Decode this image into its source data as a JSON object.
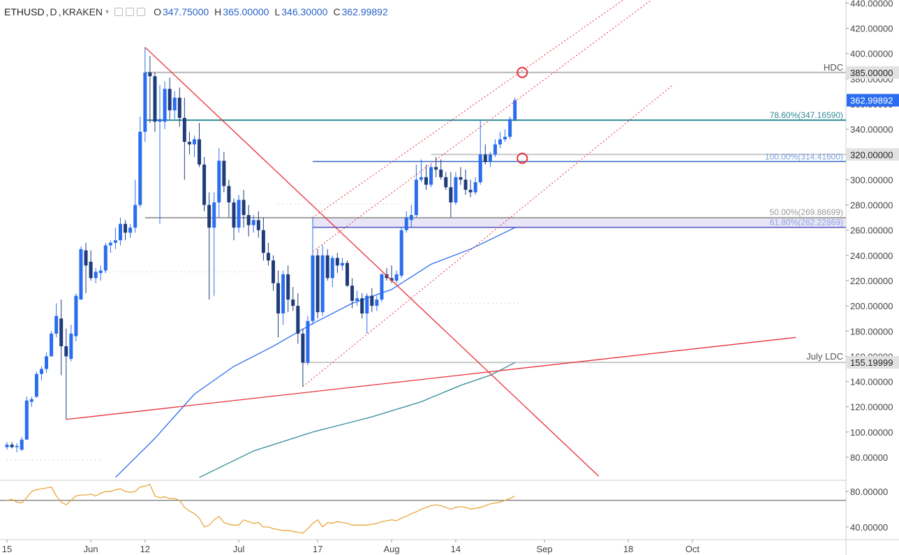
{
  "header": {
    "symbol": "ETHUSD",
    "interval": "D",
    "exchange": "KRAKEN",
    "ohlc": [
      {
        "key": "O",
        "value": "347.75000"
      },
      {
        "key": "H",
        "value": "365.00000"
      },
      {
        "key": "L",
        "value": "346.30000"
      },
      {
        "key": "C",
        "value": "362.99892"
      }
    ]
  },
  "colors": {
    "up": "#2a6df0",
    "down": "#1f3c7a",
    "trend_red": "#e8303a",
    "fib_teal": "#2e8b96",
    "fib_blue": "#3367c8",
    "ma_blue": "#2a6df0",
    "ma_teal": "#2e8b96",
    "rsi": "#e8a030",
    "grey": "#9e9e9e",
    "last_price_bg": "#2a6df0"
  },
  "chart_data": {
    "type": "candlestick",
    "y_axis": {
      "range": [
        64,
        444
      ],
      "ticks": [
        "80.00000",
        "100.00000",
        "120.00000",
        "140.00000",
        "160.00000",
        "180.00000",
        "200.00000",
        "220.00000",
        "240.00000",
        "260.00000",
        "280.00000",
        "300.00000",
        "320.00000",
        "340.00000",
        "360.00000",
        "380.00000",
        "400.00000",
        "420.00000",
        "440.00000"
      ]
    },
    "x_axis": {
      "tick_labels": [
        {
          "day": 0,
          "label": "15"
        },
        {
          "day": 17,
          "label": "Jun"
        },
        {
          "day": 28,
          "label": "12"
        },
        {
          "day": 47,
          "label": "Jul"
        },
        {
          "day": 63,
          "label": "17"
        },
        {
          "day": 78,
          "label": "Aug"
        },
        {
          "day": 91,
          "label": "14"
        },
        {
          "day": 109,
          "label": "Sep"
        },
        {
          "day": 126,
          "label": "18"
        },
        {
          "day": 139,
          "label": "Oct"
        }
      ]
    },
    "candles": [
      {
        "d": 0,
        "o": 88,
        "h": 92,
        "l": 86,
        "c": 90
      },
      {
        "d": 1,
        "o": 90,
        "h": 92,
        "l": 87,
        "c": 88
      },
      {
        "d": 2,
        "o": 88,
        "h": 91,
        "l": 84,
        "c": 89
      },
      {
        "d": 3,
        "o": 86,
        "h": 96,
        "l": 85,
        "c": 94
      },
      {
        "d": 4,
        "o": 94,
        "h": 128,
        "l": 94,
        "c": 125
      },
      {
        "d": 5,
        "o": 124,
        "h": 128,
        "l": 120,
        "c": 126
      },
      {
        "d": 6,
        "o": 128,
        "h": 148,
        "l": 127,
        "c": 146
      },
      {
        "d": 7,
        "o": 146,
        "h": 152,
        "l": 141,
        "c": 150
      },
      {
        "d": 8,
        "o": 150,
        "h": 163,
        "l": 147,
        "c": 160
      },
      {
        "d": 9,
        "o": 160,
        "h": 180,
        "l": 160,
        "c": 178
      },
      {
        "d": 10,
        "o": 178,
        "h": 202,
        "l": 175,
        "c": 192
      },
      {
        "d": 11,
        "o": 190,
        "h": 205,
        "l": 145,
        "c": 168
      },
      {
        "d": 12,
        "o": 168,
        "h": 182,
        "l": 110,
        "c": 160
      },
      {
        "d": 13,
        "o": 158,
        "h": 185,
        "l": 156,
        "c": 178
      },
      {
        "d": 14,
        "o": 176,
        "h": 210,
        "l": 172,
        "c": 208
      },
      {
        "d": 15,
        "o": 205,
        "h": 247,
        "l": 205,
        "c": 245
      },
      {
        "d": 16,
        "o": 244,
        "h": 250,
        "l": 210,
        "c": 232
      },
      {
        "d": 17,
        "o": 235,
        "h": 244,
        "l": 220,
        "c": 222
      },
      {
        "d": 18,
        "o": 222,
        "h": 230,
        "l": 218,
        "c": 227
      },
      {
        "d": 19,
        "o": 226,
        "h": 232,
        "l": 220,
        "c": 228
      },
      {
        "d": 20,
        "o": 228,
        "h": 250,
        "l": 226,
        "c": 248
      },
      {
        "d": 21,
        "o": 248,
        "h": 252,
        "l": 242,
        "c": 250
      },
      {
        "d": 22,
        "o": 250,
        "h": 262,
        "l": 245,
        "c": 252
      },
      {
        "d": 23,
        "o": 252,
        "h": 270,
        "l": 248,
        "c": 265
      },
      {
        "d": 24,
        "o": 265,
        "h": 268,
        "l": 252,
        "c": 258
      },
      {
        "d": 25,
        "o": 258,
        "h": 265,
        "l": 254,
        "c": 262
      },
      {
        "d": 26,
        "o": 262,
        "h": 300,
        "l": 258,
        "c": 280
      },
      {
        "d": 27,
        "o": 280,
        "h": 350,
        "l": 278,
        "c": 338
      },
      {
        "d": 28,
        "o": 338,
        "h": 405,
        "l": 330,
        "c": 385
      },
      {
        "d": 29,
        "o": 385,
        "h": 398,
        "l": 345,
        "c": 382
      },
      {
        "d": 30,
        "o": 382,
        "h": 385,
        "l": 338,
        "c": 346
      },
      {
        "d": 31,
        "o": 346,
        "h": 375,
        "l": 265,
        "c": 348
      },
      {
        "d": 32,
        "o": 346,
        "h": 378,
        "l": 340,
        "c": 372
      },
      {
        "d": 33,
        "o": 372,
        "h": 381,
        "l": 348,
        "c": 355
      },
      {
        "d": 34,
        "o": 355,
        "h": 370,
        "l": 348,
        "c": 365
      },
      {
        "d": 35,
        "o": 365,
        "h": 373,
        "l": 342,
        "c": 349
      },
      {
        "d": 36,
        "o": 349,
        "h": 365,
        "l": 300,
        "c": 330
      },
      {
        "d": 37,
        "o": 330,
        "h": 338,
        "l": 320,
        "c": 328
      },
      {
        "d": 38,
        "o": 328,
        "h": 335,
        "l": 318,
        "c": 332
      },
      {
        "d": 39,
        "o": 332,
        "h": 345,
        "l": 310,
        "c": 312
      },
      {
        "d": 40,
        "o": 312,
        "h": 318,
        "l": 275,
        "c": 280
      },
      {
        "d": 41,
        "o": 280,
        "h": 290,
        "l": 205,
        "c": 262
      },
      {
        "d": 42,
        "o": 262,
        "h": 290,
        "l": 208,
        "c": 282
      },
      {
        "d": 43,
        "o": 282,
        "h": 325,
        "l": 270,
        "c": 315
      },
      {
        "d": 44,
        "o": 315,
        "h": 322,
        "l": 290,
        "c": 295
      },
      {
        "d": 45,
        "o": 295,
        "h": 300,
        "l": 270,
        "c": 282
      },
      {
        "d": 46,
        "o": 282,
        "h": 285,
        "l": 252,
        "c": 262
      },
      {
        "d": 47,
        "o": 262,
        "h": 288,
        "l": 258,
        "c": 284
      },
      {
        "d": 48,
        "o": 284,
        "h": 292,
        "l": 262,
        "c": 272
      },
      {
        "d": 49,
        "o": 272,
        "h": 280,
        "l": 255,
        "c": 264
      },
      {
        "d": 50,
        "o": 264,
        "h": 272,
        "l": 258,
        "c": 268
      },
      {
        "d": 51,
        "o": 268,
        "h": 275,
        "l": 254,
        "c": 260
      },
      {
        "d": 52,
        "o": 260,
        "h": 270,
        "l": 236,
        "c": 242
      },
      {
        "d": 53,
        "o": 242,
        "h": 250,
        "l": 232,
        "c": 236
      },
      {
        "d": 54,
        "o": 236,
        "h": 240,
        "l": 212,
        "c": 218
      },
      {
        "d": 55,
        "o": 218,
        "h": 228,
        "l": 175,
        "c": 194
      },
      {
        "d": 56,
        "o": 194,
        "h": 228,
        "l": 185,
        "c": 225
      },
      {
        "d": 57,
        "o": 225,
        "h": 232,
        "l": 195,
        "c": 205
      },
      {
        "d": 58,
        "o": 205,
        "h": 215,
        "l": 196,
        "c": 200
      },
      {
        "d": 59,
        "o": 200,
        "h": 210,
        "l": 170,
        "c": 178
      },
      {
        "d": 60,
        "o": 178,
        "h": 182,
        "l": 136,
        "c": 155
      },
      {
        "d": 61,
        "o": 155,
        "h": 192,
        "l": 153,
        "c": 188
      },
      {
        "d": 62,
        "o": 188,
        "h": 270,
        "l": 185,
        "c": 240
      },
      {
        "d": 63,
        "o": 240,
        "h": 245,
        "l": 190,
        "c": 195
      },
      {
        "d": 64,
        "o": 195,
        "h": 248,
        "l": 192,
        "c": 240
      },
      {
        "d": 65,
        "o": 240,
        "h": 245,
        "l": 220,
        "c": 222
      },
      {
        "d": 66,
        "o": 222,
        "h": 240,
        "l": 215,
        "c": 238
      },
      {
        "d": 67,
        "o": 238,
        "h": 242,
        "l": 226,
        "c": 232
      },
      {
        "d": 68,
        "o": 232,
        "h": 238,
        "l": 228,
        "c": 234
      },
      {
        "d": 69,
        "o": 234,
        "h": 236,
        "l": 215,
        "c": 216
      },
      {
        "d": 70,
        "o": 216,
        "h": 222,
        "l": 198,
        "c": 204
      },
      {
        "d": 71,
        "o": 204,
        "h": 212,
        "l": 200,
        "c": 206
      },
      {
        "d": 72,
        "o": 206,
        "h": 210,
        "l": 190,
        "c": 194
      },
      {
        "d": 73,
        "o": 194,
        "h": 210,
        "l": 178,
        "c": 208
      },
      {
        "d": 74,
        "o": 208,
        "h": 214,
        "l": 195,
        "c": 200
      },
      {
        "d": 75,
        "o": 200,
        "h": 208,
        "l": 196,
        "c": 205
      },
      {
        "d": 76,
        "o": 205,
        "h": 226,
        "l": 203,
        "c": 225
      },
      {
        "d": 77,
        "o": 225,
        "h": 230,
        "l": 220,
        "c": 222
      },
      {
        "d": 78,
        "o": 222,
        "h": 232,
        "l": 218,
        "c": 220
      },
      {
        "d": 79,
        "o": 220,
        "h": 228,
        "l": 218,
        "c": 225
      },
      {
        "d": 80,
        "o": 224,
        "h": 262,
        "l": 222,
        "c": 260
      },
      {
        "d": 81,
        "o": 260,
        "h": 275,
        "l": 258,
        "c": 270
      },
      {
        "d": 82,
        "o": 268,
        "h": 280,
        "l": 262,
        "c": 272
      },
      {
        "d": 83,
        "o": 272,
        "h": 312,
        "l": 270,
        "c": 300
      },
      {
        "d": 84,
        "o": 300,
        "h": 316,
        "l": 298,
        "c": 302
      },
      {
        "d": 85,
        "o": 302,
        "h": 312,
        "l": 292,
        "c": 296
      },
      {
        "d": 86,
        "o": 296,
        "h": 312,
        "l": 294,
        "c": 310
      },
      {
        "d": 87,
        "o": 310,
        "h": 318,
        "l": 302,
        "c": 308
      },
      {
        "d": 88,
        "o": 308,
        "h": 316,
        "l": 300,
        "c": 302
      },
      {
        "d": 89,
        "o": 302,
        "h": 306,
        "l": 292,
        "c": 294
      },
      {
        "d": 90,
        "o": 294,
        "h": 306,
        "l": 270,
        "c": 282
      },
      {
        "d": 91,
        "o": 282,
        "h": 306,
        "l": 280,
        "c": 302
      },
      {
        "d": 92,
        "o": 302,
        "h": 310,
        "l": 296,
        "c": 300
      },
      {
        "d": 93,
        "o": 300,
        "h": 308,
        "l": 288,
        "c": 292
      },
      {
        "d": 94,
        "o": 292,
        "h": 300,
        "l": 286,
        "c": 290
      },
      {
        "d": 95,
        "o": 290,
        "h": 302,
        "l": 288,
        "c": 298
      },
      {
        "d": 96,
        "o": 298,
        "h": 347,
        "l": 296,
        "c": 320
      },
      {
        "d": 97,
        "o": 320,
        "h": 328,
        "l": 312,
        "c": 314
      },
      {
        "d": 98,
        "o": 314,
        "h": 322,
        "l": 310,
        "c": 320
      },
      {
        "d": 99,
        "o": 320,
        "h": 332,
        "l": 318,
        "c": 328
      },
      {
        "d": 100,
        "o": 328,
        "h": 338,
        "l": 325,
        "c": 332
      },
      {
        "d": 101,
        "o": 332,
        "h": 340,
        "l": 330,
        "c": 334
      },
      {
        "d": 102,
        "o": 334,
        "h": 350,
        "l": 332,
        "c": 348
      },
      {
        "d": 103,
        "o": 347.75,
        "h": 365,
        "l": 346.3,
        "c": 362.99892
      }
    ],
    "trendlines": [
      {
        "name": "support-red",
        "from": [
          12,
          110
        ],
        "to": [
          160,
          175
        ],
        "style": "solid"
      },
      {
        "name": "resistance-red",
        "from": [
          28,
          405
        ],
        "to": [
          120,
          65
        ],
        "style": "solid"
      },
      {
        "name": "channel-mid",
        "from": [
          62,
          243
        ],
        "to": [
          135,
          455
        ],
        "style": "dotted"
      },
      {
        "name": "channel-upper",
        "from": [
          62,
          270
        ],
        "to": [
          135,
          470
        ],
        "style": "dotted"
      },
      {
        "name": "channel-lower",
        "from": [
          60,
          136
        ],
        "to": [
          135,
          375
        ],
        "style": "dotted"
      }
    ],
    "levels": [
      {
        "name": "hdc",
        "price": 385,
        "from_day": 28,
        "label": "HDC",
        "axis_label": "385.00000"
      },
      {
        "name": "fib-786",
        "price": 347.1659,
        "from_day": 28,
        "label": "78.60%(347.16590)"
      },
      {
        "name": "fib-100",
        "price": 314.416,
        "from_day": 62,
        "label": "100.00%(314.41600)"
      },
      {
        "name": "level-320",
        "price": 320,
        "from_day": 86,
        "axis_label": "320.00000"
      },
      {
        "name": "fib-50",
        "price": 269.88699,
        "from_day": 28,
        "label": "50.00%(269.88699)"
      },
      {
        "name": "fib-618",
        "price": 262.22869,
        "from_day": 62,
        "label": "61.80%(262.22869)"
      },
      {
        "name": "july-ldc",
        "price": 155.19999,
        "from_day": 60,
        "label": "July LDC",
        "axis_label": "155.19999"
      }
    ],
    "last_price_label": "362.99892",
    "rsi": {
      "ticks": [
        "80.00000",
        "40.00000"
      ],
      "range": [
        30,
        90
      ],
      "values": [
        70,
        71,
        68,
        67,
        73,
        80,
        82,
        83,
        84,
        85,
        75,
        68,
        65,
        70,
        75,
        76,
        76,
        77,
        75,
        78,
        80,
        80,
        82,
        83,
        80,
        79,
        80,
        85,
        86,
        88,
        75,
        73,
        74,
        72,
        72,
        70,
        62,
        58,
        55,
        50,
        40,
        42,
        48,
        52,
        45,
        43,
        42,
        42,
        48,
        46,
        44,
        45,
        40,
        40,
        38,
        37,
        36,
        36,
        35,
        34,
        33,
        38,
        44,
        48,
        40,
        45,
        44,
        46,
        45,
        44,
        42,
        42,
        42,
        42,
        43,
        44,
        46,
        47,
        48,
        47,
        50,
        52,
        55,
        57,
        60,
        62,
        64,
        65,
        64,
        62,
        60,
        62,
        63,
        62,
        60,
        61,
        62,
        64,
        66,
        67,
        68,
        70,
        72,
        75
      ]
    },
    "moving_averages": [
      {
        "name": "ma-blue",
        "points": [
          [
            22,
            64
          ],
          [
            30,
            95
          ],
          [
            38,
            130
          ],
          [
            46,
            152
          ],
          [
            54,
            168
          ],
          [
            62,
            186
          ],
          [
            70,
            202
          ],
          [
            78,
            213
          ],
          [
            86,
            233
          ],
          [
            94,
            245
          ],
          [
            103,
            262
          ]
        ]
      },
      {
        "name": "ma-teal",
        "points": [
          [
            39,
            64
          ],
          [
            50,
            85
          ],
          [
            62,
            100
          ],
          [
            74,
            112
          ],
          [
            84,
            124
          ],
          [
            92,
            137
          ],
          [
            98,
            145
          ],
          [
            103,
            155
          ]
        ]
      }
    ],
    "markers": [
      {
        "name": "target-385-circle",
        "day": 104.5,
        "price": 385
      },
      {
        "name": "target-320-circle",
        "day": 104.5,
        "price": 317
      }
    ],
    "dotted_refs": [
      {
        "price": 78,
        "from_day": 0,
        "to_day": 19
      },
      {
        "price": 227,
        "from_day": 19,
        "to_day": 52
      },
      {
        "price": 281,
        "from_day": 55,
        "to_day": 80
      },
      {
        "price": 202,
        "from_day": 84,
        "to_day": 104
      }
    ]
  }
}
